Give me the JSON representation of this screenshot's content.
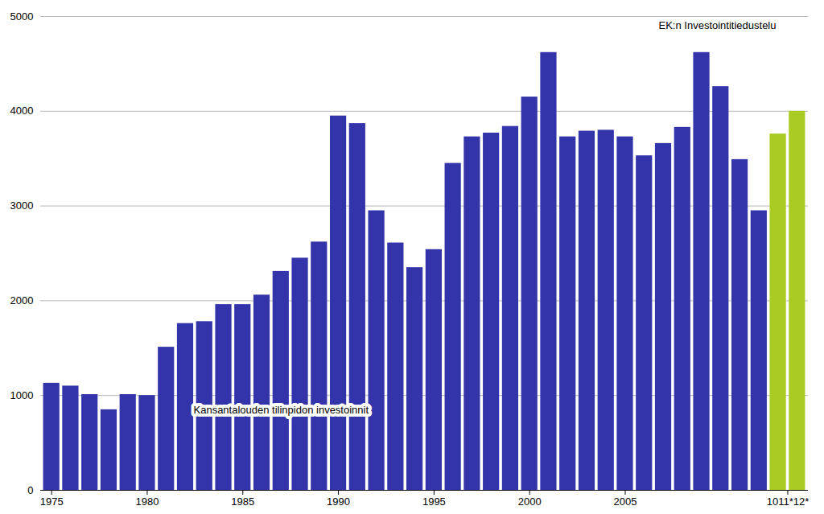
{
  "chart_data": {
    "type": "bar",
    "categories": [
      "1975",
      null,
      null,
      null,
      null,
      "1980",
      null,
      null,
      null,
      null,
      "1985",
      null,
      null,
      null,
      null,
      "1990",
      null,
      null,
      null,
      null,
      "1995",
      null,
      null,
      null,
      null,
      "2000",
      null,
      null,
      null,
      null,
      "2005",
      null,
      null,
      null,
      null,
      null,
      null,
      null,
      "1011*12*",
      null
    ],
    "values": [
      1130,
      1100,
      1010,
      850,
      1010,
      1000,
      1510,
      1760,
      1780,
      1960,
      1960,
      2060,
      2310,
      2450,
      2620,
      3950,
      3870,
      2950,
      2610,
      2350,
      2540,
      3450,
      3730,
      3770,
      3840,
      4150,
      4620,
      3730,
      3790,
      3800,
      3730,
      3530,
      3660,
      3830,
      4620,
      4260,
      3490,
      2950,
      3760,
      4000
    ],
    "colors": [
      "#3333AA",
      "#3333AA",
      "#3333AA",
      "#3333AA",
      "#3333AA",
      "#3333AA",
      "#3333AA",
      "#3333AA",
      "#3333AA",
      "#3333AA",
      "#3333AA",
      "#3333AA",
      "#3333AA",
      "#3333AA",
      "#3333AA",
      "#3333AA",
      "#3333AA",
      "#3333AA",
      "#3333AA",
      "#3333AA",
      "#3333AA",
      "#3333AA",
      "#3333AA",
      "#3333AA",
      "#3333AA",
      "#3333AA",
      "#3333AA",
      "#3333AA",
      "#3333AA",
      "#3333AA",
      "#3333AA",
      "#3333AA",
      "#3333AA",
      "#3333AA",
      "#3333AA",
      "#3333AA",
      "#3333AA",
      "#3333AA",
      "#AACC22",
      "#AACC22"
    ],
    "annotations": [
      "EK:n Investointitiedustelu",
      "Kansantalouden tilinpidon investoinnit"
    ],
    "ylim": [
      0,
      5000
    ],
    "yticks": [
      0,
      1000,
      2000,
      3000,
      4000,
      5000
    ],
    "grid": true
  }
}
